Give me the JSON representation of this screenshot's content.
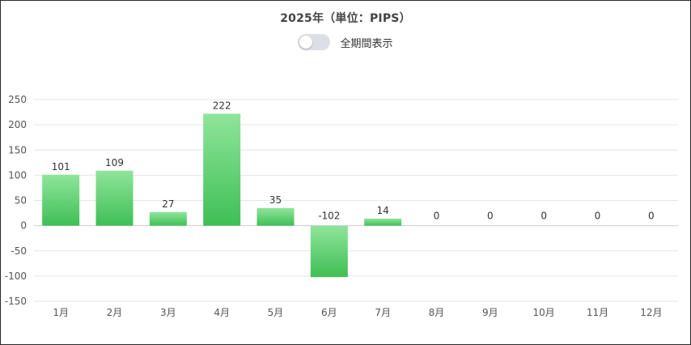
{
  "header": {
    "title": "2025年（単位：PIPS）",
    "toggle_label": "全期間表示",
    "toggle_on": false
  },
  "colors": {
    "bar_top": "#8fe59b",
    "bar_bottom": "#3fbf55",
    "grid": "#e6e6e6",
    "zero_line": "#cfcfcf"
  },
  "chart_data": {
    "type": "bar",
    "title": "2025年（単位：PIPS）",
    "categories": [
      "1月",
      "2月",
      "3月",
      "4月",
      "5月",
      "6月",
      "7月",
      "8月",
      "9月",
      "10月",
      "11月",
      "12月"
    ],
    "values": [
      101,
      109,
      27,
      222,
      35,
      -102,
      14,
      0,
      0,
      0,
      0,
      0
    ],
    "data_labels": [
      "101",
      "109",
      "27",
      "222",
      "35",
      "-102",
      "14",
      "0",
      "0",
      "0",
      "0",
      "0"
    ],
    "yticks": [
      250,
      200,
      150,
      100,
      50,
      0,
      -50,
      -100,
      -150
    ],
    "ylim": [
      -150,
      250
    ],
    "grid": true,
    "legend": "none"
  }
}
